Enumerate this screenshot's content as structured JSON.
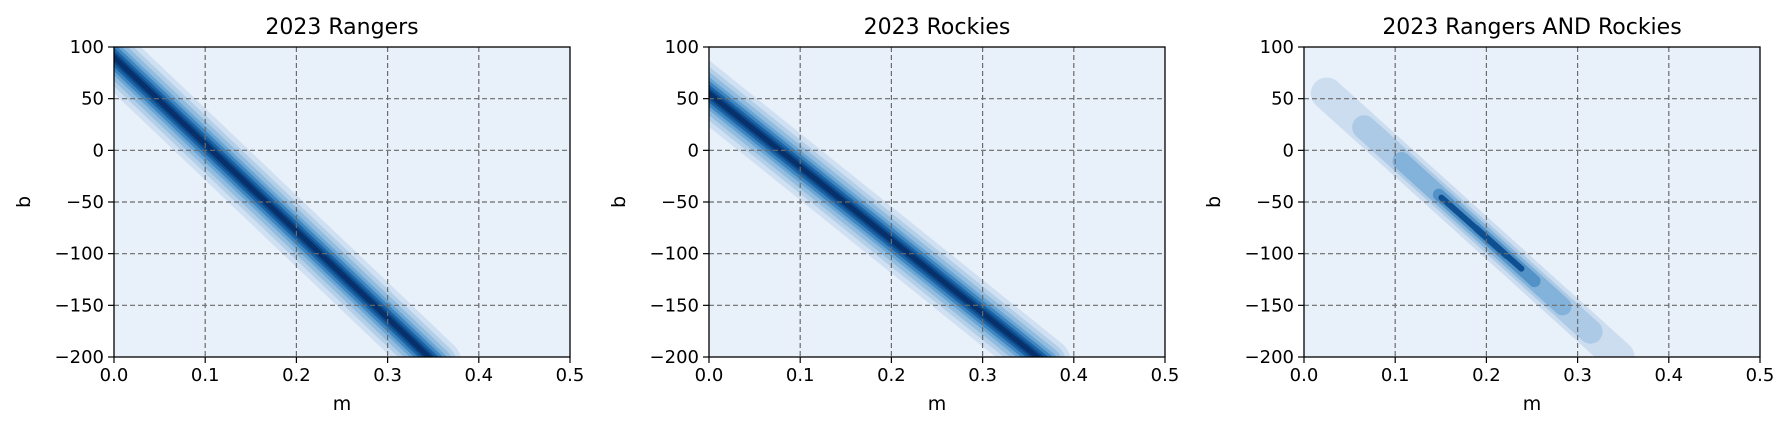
{
  "chart_data": [
    {
      "type": "heatmap",
      "subtype": "filled-contour",
      "title": "2023 Rangers",
      "xlabel": "m",
      "ylabel": "b",
      "xlim": [
        0.0,
        0.5
      ],
      "ylim": [
        -200,
        100
      ],
      "xticks": [
        "0.0",
        "0.1",
        "0.2",
        "0.3",
        "0.4",
        "0.5"
      ],
      "yticks": [
        "100",
        "50",
        "0",
        "−50",
        "−100",
        "−150",
        "−200"
      ],
      "grid": true,
      "colormap": "Blues",
      "background_color": "#e8f0fa",
      "ridge": {
        "from": [
          0.0,
          90
        ],
        "to": [
          0.345,
          -200
        ]
      },
      "ridge_extent_m": [
        0.0,
        0.345
      ]
    },
    {
      "type": "heatmap",
      "subtype": "filled-contour",
      "title": "2023 Rockies",
      "xlabel": "m",
      "ylabel": "b",
      "xlim": [
        0.0,
        0.5
      ],
      "ylim": [
        -200,
        100
      ],
      "xticks": [
        "0.0",
        "0.1",
        "0.2",
        "0.3",
        "0.4",
        "0.5"
      ],
      "yticks": [
        "100",
        "50",
        "0",
        "−50",
        "−100",
        "−150",
        "−200"
      ],
      "grid": true,
      "colormap": "Blues",
      "background_color": "#e8f0fa",
      "ridge": {
        "from": [
          0.0,
          55
        ],
        "to": [
          0.36,
          -200
        ]
      },
      "ridge_extent_m": [
        0.0,
        0.36
      ]
    },
    {
      "type": "heatmap",
      "subtype": "filled-contour",
      "title": "2023 Rangers AND Rockies",
      "xlabel": "m",
      "ylabel": "b",
      "xlim": [
        0.0,
        0.5
      ],
      "ylim": [
        -200,
        100
      ],
      "xticks": [
        "0.0",
        "0.1",
        "0.2",
        "0.3",
        "0.4",
        "0.5"
      ],
      "yticks": [
        "100",
        "50",
        "0",
        "−50",
        "−100",
        "−150",
        "−200"
      ],
      "grid": true,
      "colormap": "Blues",
      "background_color": "#e8f0fa",
      "ridge": {
        "from": [
          0.025,
          55
        ],
        "to": [
          0.345,
          -200
        ]
      },
      "ridge_extent_m": [
        0.025,
        0.345
      ],
      "peak_m": 0.2
    }
  ]
}
